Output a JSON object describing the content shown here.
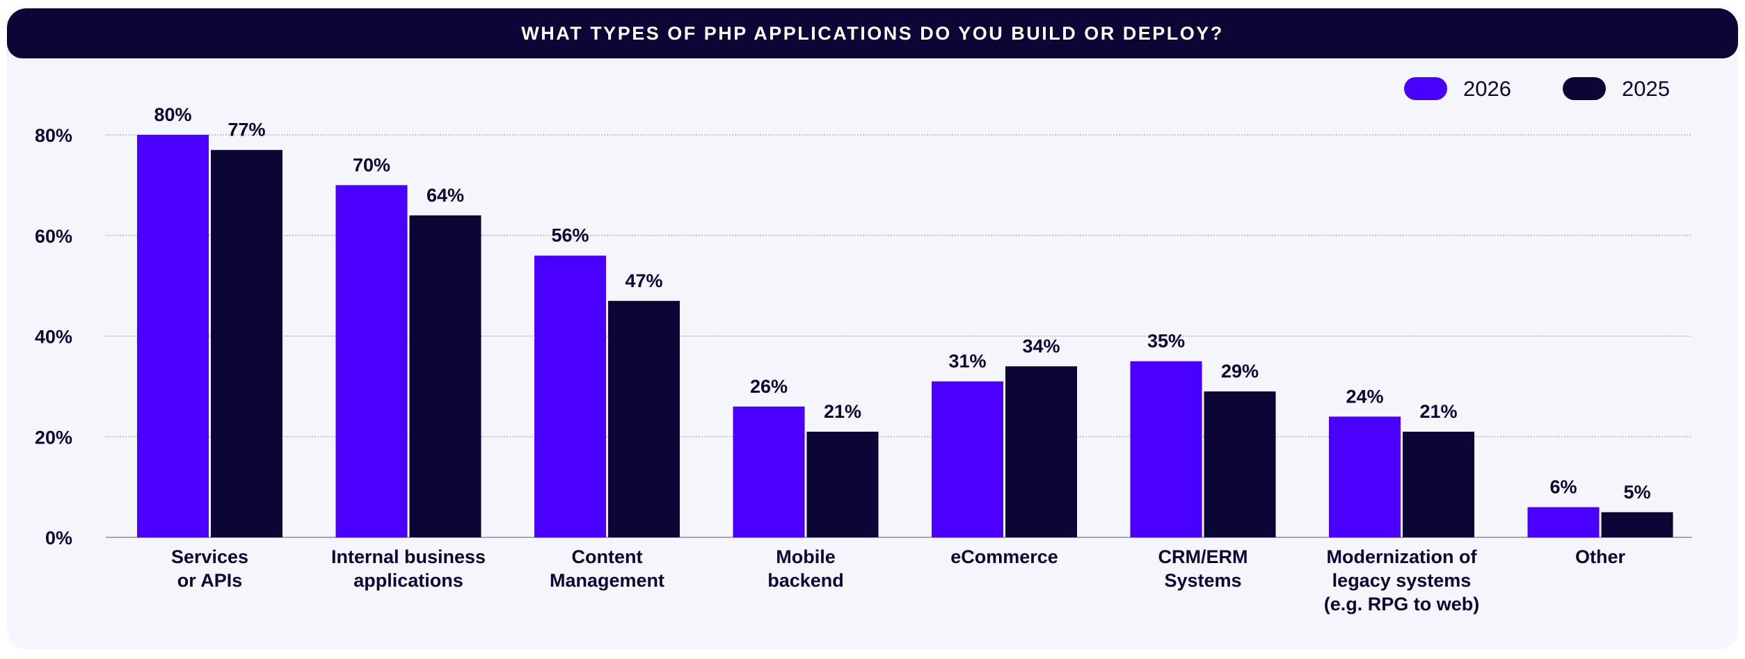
{
  "chart_data": {
    "type": "bar",
    "title": "WHAT TYPES OF PHP APPLICATIONS DO YOU BUILD OR DEPLOY?",
    "xlabel": "",
    "ylabel": "",
    "ylim": [
      0,
      80
    ],
    "y_ticks": [
      "0%",
      "20%",
      "40%",
      "60%",
      "80%"
    ],
    "y_tick_values": [
      0,
      20,
      40,
      60,
      80
    ],
    "grid": true,
    "legend_position": "top-right",
    "categories": [
      [
        "Services",
        "or APIs"
      ],
      [
        "Internal business",
        "applications"
      ],
      [
        "Content",
        "Management"
      ],
      [
        "Mobile",
        "backend"
      ],
      [
        "eCommerce"
      ],
      [
        "CRM/ERM",
        "Systems"
      ],
      [
        "Modernization of",
        "legacy systems",
        "(e.g. RPG to web)"
      ],
      [
        "Other"
      ]
    ],
    "series": [
      {
        "name": "2026",
        "color": "#4a00ff",
        "values": [
          80,
          70,
          56,
          26,
          31,
          35,
          24,
          6
        ],
        "labels": [
          "80%",
          "70%",
          "56%",
          "26%",
          "31%",
          "35%",
          "24%",
          "6%"
        ]
      },
      {
        "name": "2025",
        "color": "#0b0635",
        "values": [
          77,
          64,
          47,
          21,
          34,
          29,
          21,
          5
        ],
        "labels": [
          "77%",
          "64%",
          "47%",
          "21%",
          "34%",
          "29%",
          "21%",
          "5%"
        ]
      }
    ]
  }
}
